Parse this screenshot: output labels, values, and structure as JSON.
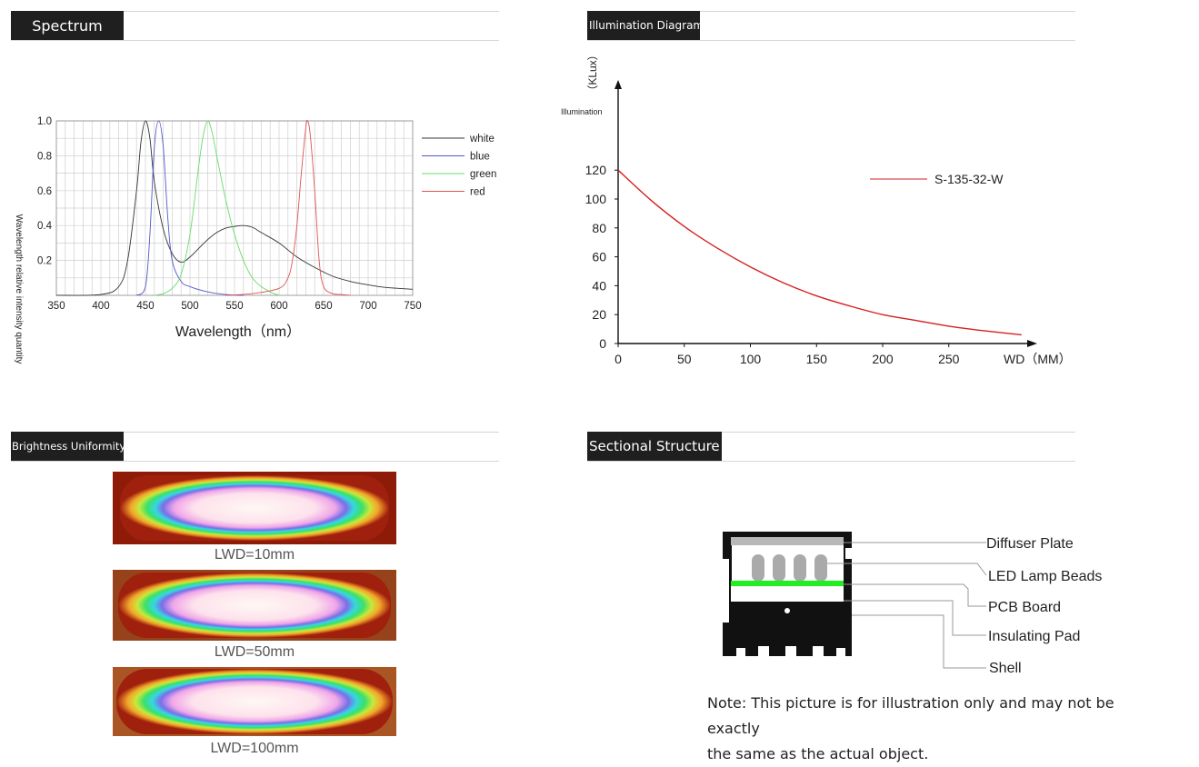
{
  "sections": {
    "spectrum": {
      "title": "Spectrum"
    },
    "illumination": {
      "title": "Illumination Diagram"
    },
    "uniformity": {
      "title": "Brightness Uniformity"
    },
    "structure": {
      "title": "Sectional Structure"
    }
  },
  "colors": {
    "white": "#333333",
    "blue": "#5555cc",
    "green": "#66dd66",
    "red": "#dd5555",
    "illum_line": "#d62020"
  },
  "chart_data": [
    {
      "type": "line",
      "xlabel": "Wavelength（nm）",
      "ylabel": "Wavelength relative intensity quantity",
      "xlim": [
        350,
        750
      ],
      "ylim": [
        0,
        1.0
      ],
      "x_ticks": [
        350,
        400,
        450,
        500,
        550,
        600,
        650,
        700,
        750
      ],
      "y_ticks": [
        0.2,
        0.4,
        0.6,
        0.8,
        1.0
      ],
      "y_tick_labels": [
        "0.2",
        "0.4",
        "0.6",
        "0.8",
        "1.0"
      ],
      "grid": true,
      "legend": "right",
      "series": [
        {
          "name": "white",
          "color": "#333333",
          "x": [
            350,
            400,
            420,
            430,
            440,
            445,
            450,
            455,
            460,
            470,
            480,
            490,
            500,
            510,
            520,
            530,
            540,
            550,
            560,
            570,
            580,
            600,
            620,
            640,
            660,
            680,
            700,
            720,
            750
          ],
          "y": [
            0,
            0.005,
            0.05,
            0.2,
            0.6,
            0.88,
            1.0,
            0.9,
            0.65,
            0.38,
            0.24,
            0.19,
            0.22,
            0.27,
            0.32,
            0.36,
            0.385,
            0.395,
            0.4,
            0.39,
            0.36,
            0.3,
            0.22,
            0.16,
            0.11,
            0.08,
            0.06,
            0.045,
            0.035
          ]
        },
        {
          "name": "blue",
          "color": "#5555cc",
          "x": [
            440,
            450,
            455,
            460,
            465,
            470,
            475,
            480,
            490,
            500,
            520,
            540,
            560
          ],
          "y": [
            0,
            0.05,
            0.35,
            0.85,
            1.0,
            0.85,
            0.45,
            0.2,
            0.08,
            0.05,
            0.02,
            0.005,
            0
          ]
        },
        {
          "name": "green",
          "color": "#66dd66",
          "x": [
            460,
            470,
            480,
            490,
            500,
            510,
            515,
            520,
            525,
            530,
            540,
            550,
            560,
            570,
            580,
            590,
            600
          ],
          "y": [
            0,
            0.01,
            0.04,
            0.12,
            0.35,
            0.75,
            0.92,
            1.0,
            0.93,
            0.8,
            0.55,
            0.35,
            0.2,
            0.1,
            0.05,
            0.02,
            0
          ]
        },
        {
          "name": "red",
          "color": "#dd5555",
          "x": [
            540,
            570,
            600,
            610,
            615,
            620,
            625,
            630,
            632,
            635,
            640,
            645,
            650,
            660,
            670,
            680
          ],
          "y": [
            0,
            0.01,
            0.04,
            0.1,
            0.2,
            0.4,
            0.7,
            0.96,
            1.0,
            0.92,
            0.6,
            0.2,
            0.05,
            0.01,
            0.005,
            0
          ]
        }
      ]
    },
    {
      "type": "line",
      "y_axis_unit": "（KLux）",
      "y_axis_title": "Illumination",
      "x_axis_title": "WD（MM）",
      "xlim": [
        0,
        300
      ],
      "ylim": [
        0,
        120
      ],
      "x_ticks": [
        0,
        50,
        100,
        150,
        200,
        250
      ],
      "y_ticks": [
        0,
        20,
        40,
        60,
        80,
        100,
        120
      ],
      "grid": false,
      "legend": "top-right",
      "series": [
        {
          "name": "S-135-32-W",
          "color": "#d62020",
          "x": [
            0,
            25,
            50,
            75,
            100,
            125,
            150,
            175,
            200,
            225,
            250,
            275,
            305
          ],
          "y": [
            120,
            99,
            81,
            66,
            53,
            42,
            33,
            26,
            20,
            16,
            12,
            9,
            6
          ]
        }
      ]
    }
  ],
  "uniformity": {
    "images": [
      {
        "label": "LWD=10mm"
      },
      {
        "label": "LWD=50mm"
      },
      {
        "label": "LWD=100mm"
      }
    ]
  },
  "structure": {
    "labels": [
      "Diffuser Plate",
      "LED Lamp Beads",
      "PCB Board",
      "Insulating Pad",
      "Shell"
    ],
    "note_line1": "Note: This picture is for illustration only and may not be exactly",
    "note_line2": "the same as the actual object."
  }
}
